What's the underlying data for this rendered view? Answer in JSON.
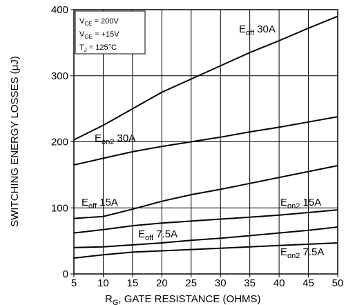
{
  "chart_data": {
    "type": "line",
    "xlabel": "R",
    "xlabel_sub": "G",
    "xlabel_rest": ", GATE  RESISTANCE (OHMS)",
    "ylabel": "SWITCHING ENERGY LOSSES (μJ)",
    "xlim": [
      5,
      50
    ],
    "ylim": [
      0,
      400
    ],
    "x_ticks": [
      "5",
      "10",
      "15",
      "20",
      "25",
      "30",
      "35",
      "40",
      "45",
      "50"
    ],
    "y_ticks": [
      "0",
      "100",
      "200",
      "300",
      "400"
    ],
    "grid": true,
    "conditions": [
      {
        "main": "V",
        "sub": "CE",
        "rest": " =  200V"
      },
      {
        "main": "V",
        "sub": "GE",
        "rest": " = +15V"
      },
      {
        "main": "T",
        "sub": "J",
        "rest": " = 125°C"
      }
    ],
    "series": [
      {
        "name_main": "E",
        "name_sub": "off",
        "name_rest": " 30A",
        "x": [
          5,
          10,
          15,
          20,
          25,
          30,
          35,
          40,
          45,
          50
        ],
        "y": [
          203,
          225,
          250,
          275,
          295,
          315,
          335,
          353,
          372,
          390
        ]
      },
      {
        "name_main": "E",
        "name_sub": "on2",
        "name_rest": " 30A",
        "x": [
          5,
          10,
          15,
          20,
          25,
          30,
          35,
          40,
          45,
          50
        ],
        "y": [
          165,
          175,
          185,
          193,
          200,
          207,
          215,
          222,
          230,
          238
        ]
      },
      {
        "name_main": "E",
        "name_sub": "off",
        "name_rest": " 15A",
        "x": [
          5,
          10,
          15,
          20,
          25,
          30,
          35,
          40,
          45,
          50
        ],
        "y": [
          84,
          87,
          98,
          110,
          120,
          128,
          137,
          146,
          155,
          164
        ]
      },
      {
        "name_main": "E",
        "name_sub": "on2",
        "name_rest": " 15A",
        "x": [
          5,
          10,
          15,
          20,
          25,
          30,
          35,
          40,
          45,
          50
        ],
        "y": [
          62,
          67,
          73,
          77,
          80,
          83,
          86,
          89,
          93,
          97
        ]
      },
      {
        "name_main": "E",
        "name_sub": "off",
        "name_rest": " 7.5A",
        "x": [
          5,
          10,
          15,
          20,
          25,
          30,
          35,
          40,
          45,
          50
        ],
        "y": [
          40,
          41,
          44,
          47,
          51,
          54,
          58,
          62,
          66,
          71
        ]
      },
      {
        "name_main": "E",
        "name_sub": "on2",
        "name_rest": " 7.5A",
        "x": [
          5,
          10,
          15,
          20,
          25,
          30,
          35,
          40,
          45,
          50
        ],
        "y": [
          24,
          29,
          33,
          35,
          37,
          39,
          41,
          43,
          45,
          47
        ]
      }
    ]
  }
}
